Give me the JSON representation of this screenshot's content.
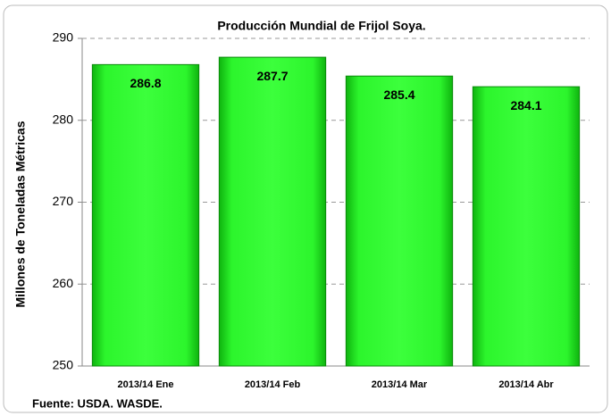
{
  "chart_data": {
    "type": "bar",
    "title": "Producción Mundial de Frijol Soya.",
    "y_label": "Millones  de Toneladas Métricas",
    "note": "Fuente: USDA.  WASDE.",
    "categories": [
      "2013/14 Ene",
      "2013/14 Feb",
      "2013/14 Mar",
      "2013/14 Abr"
    ],
    "values": [
      286.8,
      287.7,
      285.4,
      284.1
    ],
    "color": "#22e622",
    "ylim": [
      250,
      290
    ],
    "yticks": [
      250,
      260,
      270,
      280,
      290
    ],
    "grid": true
  }
}
